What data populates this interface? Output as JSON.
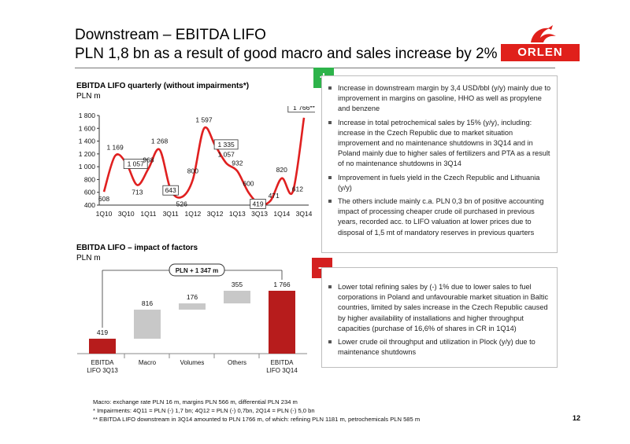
{
  "header": {
    "title_line1": "Downstream – EBITDA LIFO",
    "title_line2": "PLN 1,8 bn as a result of good macro and sales increase by 2%"
  },
  "logo": {
    "text": "ORLEN",
    "color": "#e0201b"
  },
  "colors": {
    "accent_red": "#c0161b",
    "plus_green": "#2db34a",
    "minus_red": "#d42020",
    "line_red": "#e02020",
    "bar_gray": "#c8c8c8",
    "bar_dark_red": "#b71c1c"
  },
  "chart_data": [
    {
      "type": "line",
      "title": "EBITDA LIFO quarterly (without impairments*)",
      "ylabel": "PLN m",
      "ylim": [
        400,
        1800
      ],
      "yticks": [
        "400",
        "600",
        "800",
        "1 000",
        "1 200",
        "1 400",
        "1 600",
        "1 800"
      ],
      "ytick_values": [
        400,
        600,
        800,
        1000,
        1200,
        1400,
        1600,
        1800
      ],
      "xticks": [
        "1Q10",
        "3Q10",
        "1Q11",
        "3Q11",
        "1Q12",
        "3Q12",
        "1Q13",
        "3Q13",
        "1Q14",
        "3Q14"
      ],
      "x": [
        "1Q10",
        "2Q10",
        "3Q10",
        "4Q10",
        "1Q11",
        "2Q11",
        "3Q11",
        "4Q11",
        "1Q12",
        "2Q12",
        "3Q12",
        "4Q12",
        "1Q13",
        "2Q13",
        "3Q13",
        "4Q13",
        "1Q14",
        "2Q14",
        "3Q14"
      ],
      "values": [
        608,
        1169,
        1057,
        713,
        968,
        1268,
        643,
        526,
        800,
        1597,
        1335,
        1057,
        932,
        600,
        419,
        471,
        820,
        612,
        1766
      ],
      "labels": [
        "608",
        "1 169",
        "1 057",
        "713",
        "968",
        "1 268",
        "643",
        "526",
        "800",
        "1 597",
        "1 335",
        "1 057",
        "932",
        "600",
        "419",
        "471",
        "820",
        "612",
        "1 766**"
      ],
      "grid": false
    },
    {
      "type": "bar",
      "title": "EBITDA LIFO – impact of factors",
      "ylabel": "PLN m",
      "categories": [
        "EBITDA LIFO 3Q13",
        "Macro",
        "Volumes",
        "Others",
        "EBITDA LIFO 3Q14"
      ],
      "values": [
        419,
        816,
        176,
        355,
        1766
      ],
      "value_labels": [
        "419",
        "816",
        "176",
        "355",
        "1 766"
      ],
      "bar_kinds": [
        "total",
        "delta",
        "delta",
        "delta",
        "total"
      ],
      "annotation": "PLN + 1 347 m"
    }
  ],
  "positives": {
    "badge": "+",
    "items": [
      "Increase in downstream margin by 3,4 USD/bbl (y/y) mainly due to improvement in margins on gasoline, HHO as well as propylene and benzene",
      "Increase in total petrochemical sales by 15% (y/y), including: increase in the Czech Republic due to market situation improvement  and no maintenance shutdowns in 3Q14 and in Poland mainly due to higher sales of fertilizers and PTA as a result of no maintenance shutdowns in 3Q14",
      "Improvement in fuels yield in the Czech Republic and Lithuania (y/y)",
      "The others include mainly c.a. PLN 0,3 bn of positive accounting impact of processing cheaper crude oil purchased in previous years, recorded acc. to LIFO valuation at lower prices due to disposal of 1,5 mt of mandatory reserves in previous quarters"
    ]
  },
  "negatives": {
    "badge": "–",
    "items": [
      "Lower total refining sales by (-) 1% due to lower sales to fuel corporations in Poland and unfavourable market situation in Baltic countries, limited by sales increase in the Czech Republic caused by higher availability of installations and higher throughput capacities (purchase of 16,6% of shares in CR in 1Q14)",
      "Lower crude oil throughput and utilization in Plock (y/y) due to maintenance shutdowns"
    ]
  },
  "footnotes": [
    "Macro: exchange rate PLN 16 m, margins PLN 566 m, differential PLN 234 m",
    "* Impairments: 4Q11 = PLN (-) 1,7 bn; 4Q12 = PLN (-) 0,7bn, 2Q14 = PLN (-) 5,0 bn",
    "** EBITDA LIFO downstream in 3Q14 amounted to PLN 1766 m, of which: refining PLN 1181 m, petrochemicals PLN 585 m"
  ],
  "page_number": "12"
}
